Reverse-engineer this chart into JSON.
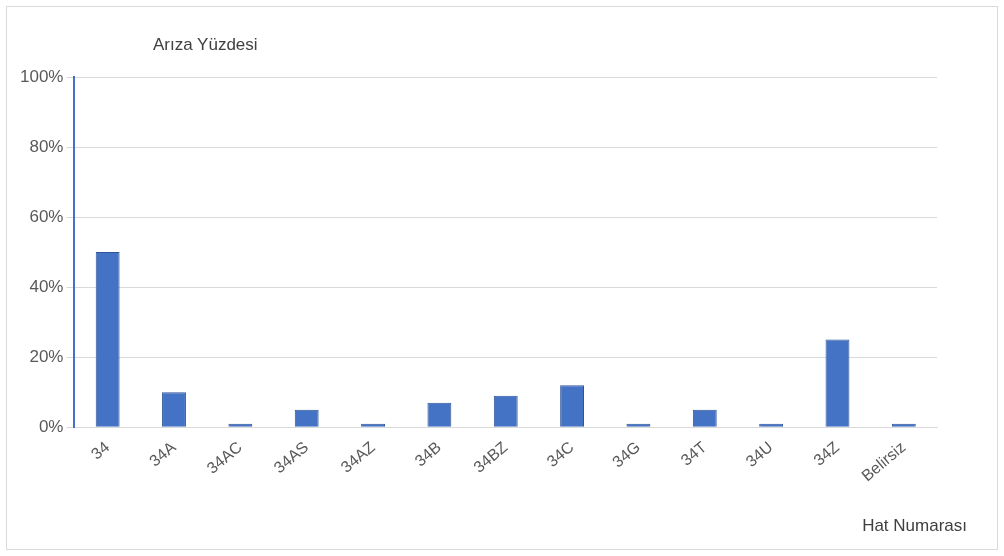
{
  "chart_data": {
    "type": "bar",
    "ylabel": "Arıza Yüzdesi",
    "xlabel": "Hat Numarası",
    "categories": [
      "34",
      "34A",
      "34AC",
      "34AS",
      "34AZ",
      "34B",
      "34BZ",
      "34C",
      "34G",
      "34T",
      "34U",
      "34Z",
      "Belirsiz"
    ],
    "values": [
      50,
      10,
      1,
      5,
      1,
      7,
      9,
      12,
      1,
      5,
      1,
      25,
      1
    ],
    "color": "#4472c4",
    "ylim": [
      0,
      100
    ],
    "yticks": [
      {
        "value": 0,
        "label": "0%"
      },
      {
        "value": 20,
        "label": "20%"
      },
      {
        "value": 40,
        "label": "40%"
      },
      {
        "value": 60,
        "label": "60%"
      },
      {
        "value": 80,
        "label": "80%"
      },
      {
        "value": 100,
        "label": "100%"
      }
    ],
    "grid": "y"
  }
}
